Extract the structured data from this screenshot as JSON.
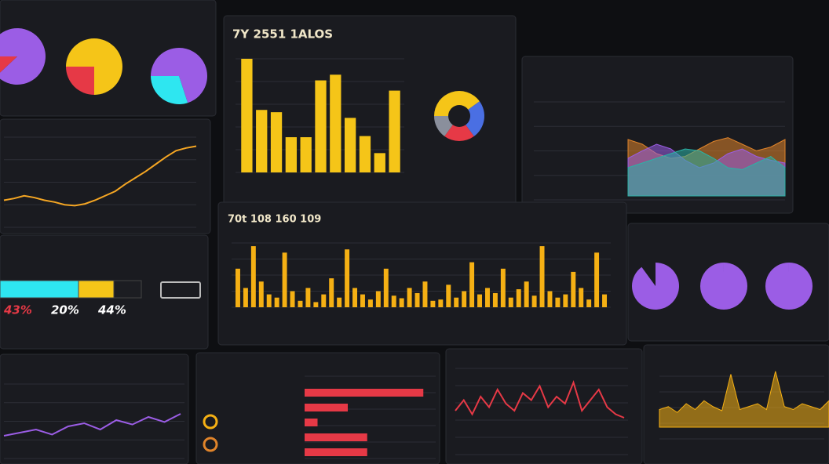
{
  "pie_panel": {
    "pies": [
      {
        "values": [
          88,
          12
        ],
        "colors": [
          "#9b5de5",
          "#e63946"
        ]
      },
      {
        "values": [
          75,
          25
        ],
        "colors": [
          "#f5c518",
          "#e63946"
        ]
      },
      {
        "values": [
          70,
          30
        ],
        "colors": [
          "#9b5de5",
          "#2ee6f0"
        ]
      }
    ]
  },
  "main_bar_panel": {
    "title": "7Y 2551 1ALOS",
    "color": "#f5c518",
    "ylim": [
      0,
      100
    ],
    "values": [
      100,
      55,
      53,
      31,
      31,
      81,
      86,
      48,
      32,
      17,
      72
    ],
    "donut": {
      "values": [
        40,
        25,
        20,
        15
      ],
      "colors": [
        "#f5c518",
        "#4a6fe3",
        "#e63946",
        "#8a8f9c"
      ]
    }
  },
  "wave_panel": {
    "color": "#f5a623",
    "ylim": [
      0,
      100
    ],
    "values": [
      30,
      32,
      35,
      33,
      30,
      28,
      25,
      24,
      26,
      30,
      35,
      40,
      48,
      55,
      62,
      70,
      78,
      85,
      88,
      90
    ]
  },
  "trend_panel": {
    "ylim": [
      0,
      100
    ],
    "series": [
      {
        "color": "#e0842a",
        "values": [
          60,
          55,
          45,
          40,
          42,
          50,
          58,
          62,
          55,
          48,
          52,
          60
        ]
      },
      {
        "color": "#9b5de5",
        "values": [
          40,
          48,
          55,
          50,
          38,
          30,
          35,
          45,
          50,
          42,
          38,
          35
        ]
      },
      {
        "color": "#2ab3a6",
        "values": [
          30,
          35,
          40,
          45,
          50,
          48,
          40,
          30,
          28,
          35,
          42,
          30
        ]
      }
    ]
  },
  "wide_bar_panel": {
    "title": "70t 108 160 109",
    "color": "#f5b014",
    "ylim": [
      0,
      100
    ],
    "values": [
      60,
      30,
      95,
      40,
      20,
      15,
      85,
      25,
      10,
      30,
      8,
      20,
      45,
      15,
      90,
      30,
      20,
      12,
      25,
      60,
      18,
      14,
      30,
      22,
      40,
      10,
      12,
      35,
      15,
      25,
      70,
      20,
      30,
      22,
      60,
      15,
      28,
      40,
      18,
      95,
      25,
      15,
      20,
      55,
      30,
      12,
      85,
      20
    ]
  },
  "progress_panel": {
    "segments": [
      100,
      45,
      35
    ],
    "colors": [
      "#2ee6f0",
      "#f5c518",
      "#1c1d22"
    ],
    "labels": [
      "43%",
      "20%",
      "44%"
    ],
    "label_colors": [
      "#e63946",
      "#ffffff",
      "#ffffff"
    ]
  },
  "ring_panel": {
    "values": [
      90,
      100,
      100
    ],
    "color": "#9b5de5"
  },
  "hbar_panel": {
    "color": "#e63946",
    "xlim": [
      0,
      120
    ],
    "values": [
      110,
      40,
      12,
      58,
      58
    ]
  },
  "red_line_panel": {
    "color": "#e63946",
    "ylim": [
      0,
      100
    ],
    "values": [
      40,
      55,
      35,
      60,
      45,
      70,
      50,
      40,
      65,
      55,
      75,
      45,
      60,
      50,
      80,
      40,
      55,
      70,
      45,
      35,
      30
    ]
  },
  "area_panel": {
    "color": "#f5b014",
    "ylim": [
      0,
      100
    ],
    "values": [
      30,
      35,
      25,
      40,
      30,
      45,
      35,
      28,
      90,
      30,
      35,
      40,
      30,
      95,
      35,
      30,
      40,
      35,
      30,
      45
    ]
  },
  "small_line_panel": {
    "color": "#9b5de5",
    "ylim": [
      0,
      100
    ],
    "values": [
      30,
      35,
      40,
      32,
      45,
      50,
      40,
      55,
      48,
      60,
      52,
      65
    ]
  }
}
